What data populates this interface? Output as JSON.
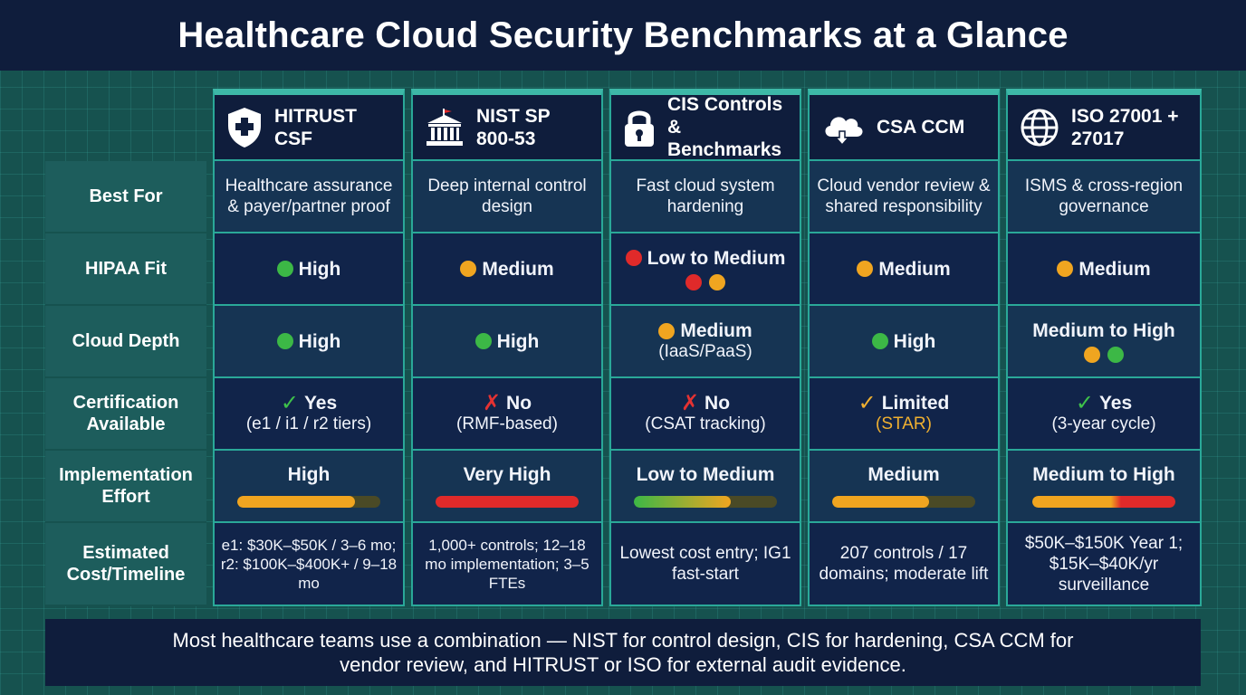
{
  "title": "Healthcare Cloud Security Benchmarks at a Glance",
  "colors": {
    "green": "#3cb846",
    "amber": "#f0a520",
    "red": "#e02a2a",
    "accent": "#3db8a7",
    "navy": "#0f1d3c"
  },
  "row_labels": {
    "best_for": "Best For",
    "hipaa_fit": "HIPAA Fit",
    "cloud_depth": "Cloud Depth",
    "certification": "Certification Available",
    "effort": "Implementation Effort",
    "cost": "Estimated Cost/Timeline"
  },
  "frameworks": [
    {
      "name": "HITRUST CSF",
      "icon": "shield-cross-icon",
      "best_for": "Healthcare assurance & payer/partner proof",
      "hipaa_fit": {
        "label": "High",
        "status": [
          "green"
        ]
      },
      "cloud_depth": {
        "label": "High",
        "status": [
          "green"
        ]
      },
      "certification": {
        "mark": "✓",
        "answer": "Yes",
        "detail": "(e1 / i1 / r2 tiers)"
      },
      "effort": {
        "label": "High",
        "level": 0.82
      },
      "cost": "e1: $30K–$50K / 3–6 mo; r2: $100K–$400K+ / 9–18 mo"
    },
    {
      "name": "NIST SP 800-53",
      "icon": "government-building-icon",
      "best_for": "Deep internal control design",
      "hipaa_fit": {
        "label": "Medium",
        "status": [
          "amber"
        ]
      },
      "cloud_depth": {
        "label": "High",
        "status": [
          "green"
        ]
      },
      "certification": {
        "mark": "✗",
        "answer": "No",
        "detail": "(RMF-based)"
      },
      "effort": {
        "label": "Very High",
        "level": 1.0
      },
      "cost": "1,000+ controls; 12–18 mo implementation; 3–5 FTEs"
    },
    {
      "name": "CIS Controls & Benchmarks",
      "icon": "padlock-icon",
      "best_for": "Fast cloud system hardening",
      "hipaa_fit": {
        "label": "Low to Medium",
        "status": [
          "red",
          "amber"
        ]
      },
      "cloud_depth": {
        "label": "Medium",
        "status": [
          "amber"
        ],
        "detail": "(IaaS/PaaS)"
      },
      "certification": {
        "mark": "✗",
        "answer": "No",
        "detail": "(CSAT tracking)"
      },
      "effort": {
        "label": "Low to Medium",
        "level": 0.68
      },
      "cost": "Lowest cost entry; IG1 fast-start"
    },
    {
      "name": "CSA CCM",
      "icon": "cloud-icon",
      "best_for": "Cloud vendor review & shared responsibility",
      "hipaa_fit": {
        "label": "Medium",
        "status": [
          "amber"
        ]
      },
      "cloud_depth": {
        "label": "High",
        "status": [
          "green"
        ]
      },
      "certification": {
        "mark": "✓",
        "answer": "Limited",
        "detail": "(STAR)"
      },
      "effort": {
        "label": "Medium",
        "level": 0.68
      },
      "cost": "207 controls / 17 domains; moderate lift"
    },
    {
      "name": "ISO 27001 + 27017",
      "icon": "globe-icon",
      "best_for": "ISMS & cross-region governance",
      "hipaa_fit": {
        "label": "Medium",
        "status": [
          "amber"
        ]
      },
      "cloud_depth": {
        "label": "Medium to High",
        "status": [
          "amber",
          "green"
        ]
      },
      "certification": {
        "mark": "✓",
        "answer": "Yes",
        "detail": "(3-year cycle)"
      },
      "effort": {
        "label": "Medium to High",
        "level": 1.0
      },
      "cost": "$50K–$150K Year 1; $15K–$40K/yr surveillance"
    }
  ],
  "footer": "Most healthcare teams use a combination — NIST for control design, CIS for hardening, CSA CCM for vendor review, and HITRUST or ISO for external audit evidence."
}
